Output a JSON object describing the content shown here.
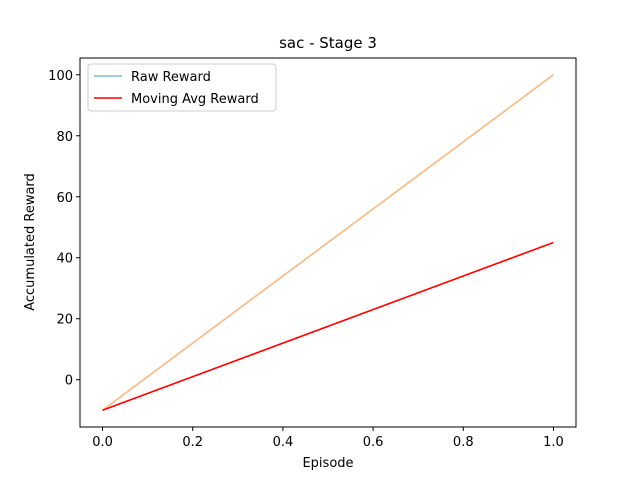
{
  "chart_data": {
    "type": "line",
    "title": "sac - Stage 3",
    "xlabel": "Episode",
    "ylabel": "Accumulated Reward",
    "x": [
      0,
      1
    ],
    "series": [
      {
        "name": "Raw Reward",
        "color": "#7fbcd9",
        "values": [
          -10,
          100
        ]
      },
      {
        "color": "#fdbf86",
        "values": [
          -10,
          100
        ]
      },
      {
        "name": "Moving Avg Reward",
        "color": "#ff0000",
        "values": [
          -10,
          45
        ]
      }
    ],
    "xlim": [
      -0.05,
      1.05
    ],
    "xticks": [
      {
        "value": 0,
        "label": "0.0"
      },
      0.2,
      0.4,
      0.6,
      0.8,
      {
        "value": 1,
        "label": "1.0"
      }
    ],
    "ylim": [
      -15.5,
      105.5
    ],
    "yticks": [
      0,
      20,
      40,
      60,
      80,
      100
    ],
    "legend": "upper left"
  }
}
